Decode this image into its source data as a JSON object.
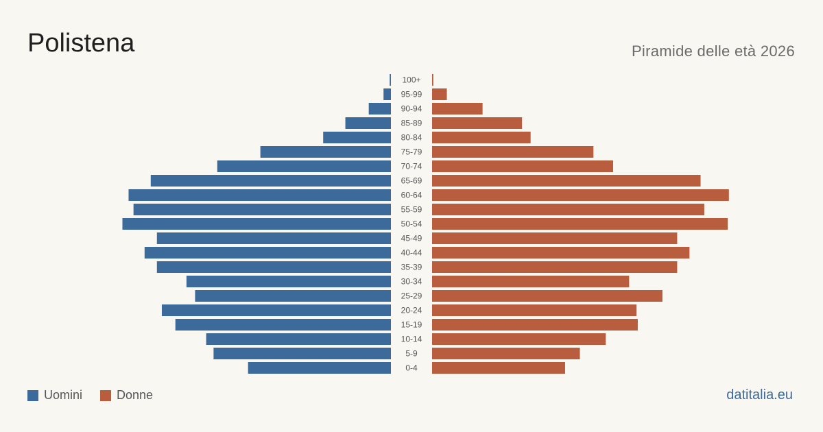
{
  "header": {
    "title": "Polistena",
    "subtitle": "Piramide delle età 2026"
  },
  "legend": {
    "men_label": "Uomini",
    "women_label": "Donne"
  },
  "footer": {
    "source": "datitalia.eu"
  },
  "colors": {
    "men": "#3b6a9b",
    "women": "#b85d3d",
    "background": "#f9f7f2",
    "age_label": "#555555"
  },
  "chart_data": {
    "type": "bar",
    "orientation": "horizontal-population-pyramid",
    "categories": [
      "100+",
      "95-99",
      "90-94",
      "85-89",
      "80-84",
      "75-79",
      "70-74",
      "65-69",
      "60-64",
      "55-59",
      "50-54",
      "45-49",
      "40-44",
      "35-39",
      "30-34",
      "25-29",
      "20-24",
      "15-19",
      "10-14",
      "5-9",
      "0-4"
    ],
    "series": [
      {
        "name": "Uomini",
        "values": [
          1,
          6,
          18,
          37,
          55,
          106,
          141,
          195,
          213,
          209,
          218,
          190,
          200,
          190,
          166,
          159,
          186,
          175,
          150,
          144,
          116
        ]
      },
      {
        "name": "Donne",
        "values": [
          1,
          12,
          41,
          73,
          80,
          131,
          147,
          218,
          241,
          221,
          240,
          199,
          209,
          199,
          160,
          187,
          166,
          167,
          141,
          120,
          108
        ]
      }
    ],
    "xlim": [
      0,
      245
    ],
    "grid": false,
    "legend_position": "bottom-left"
  }
}
